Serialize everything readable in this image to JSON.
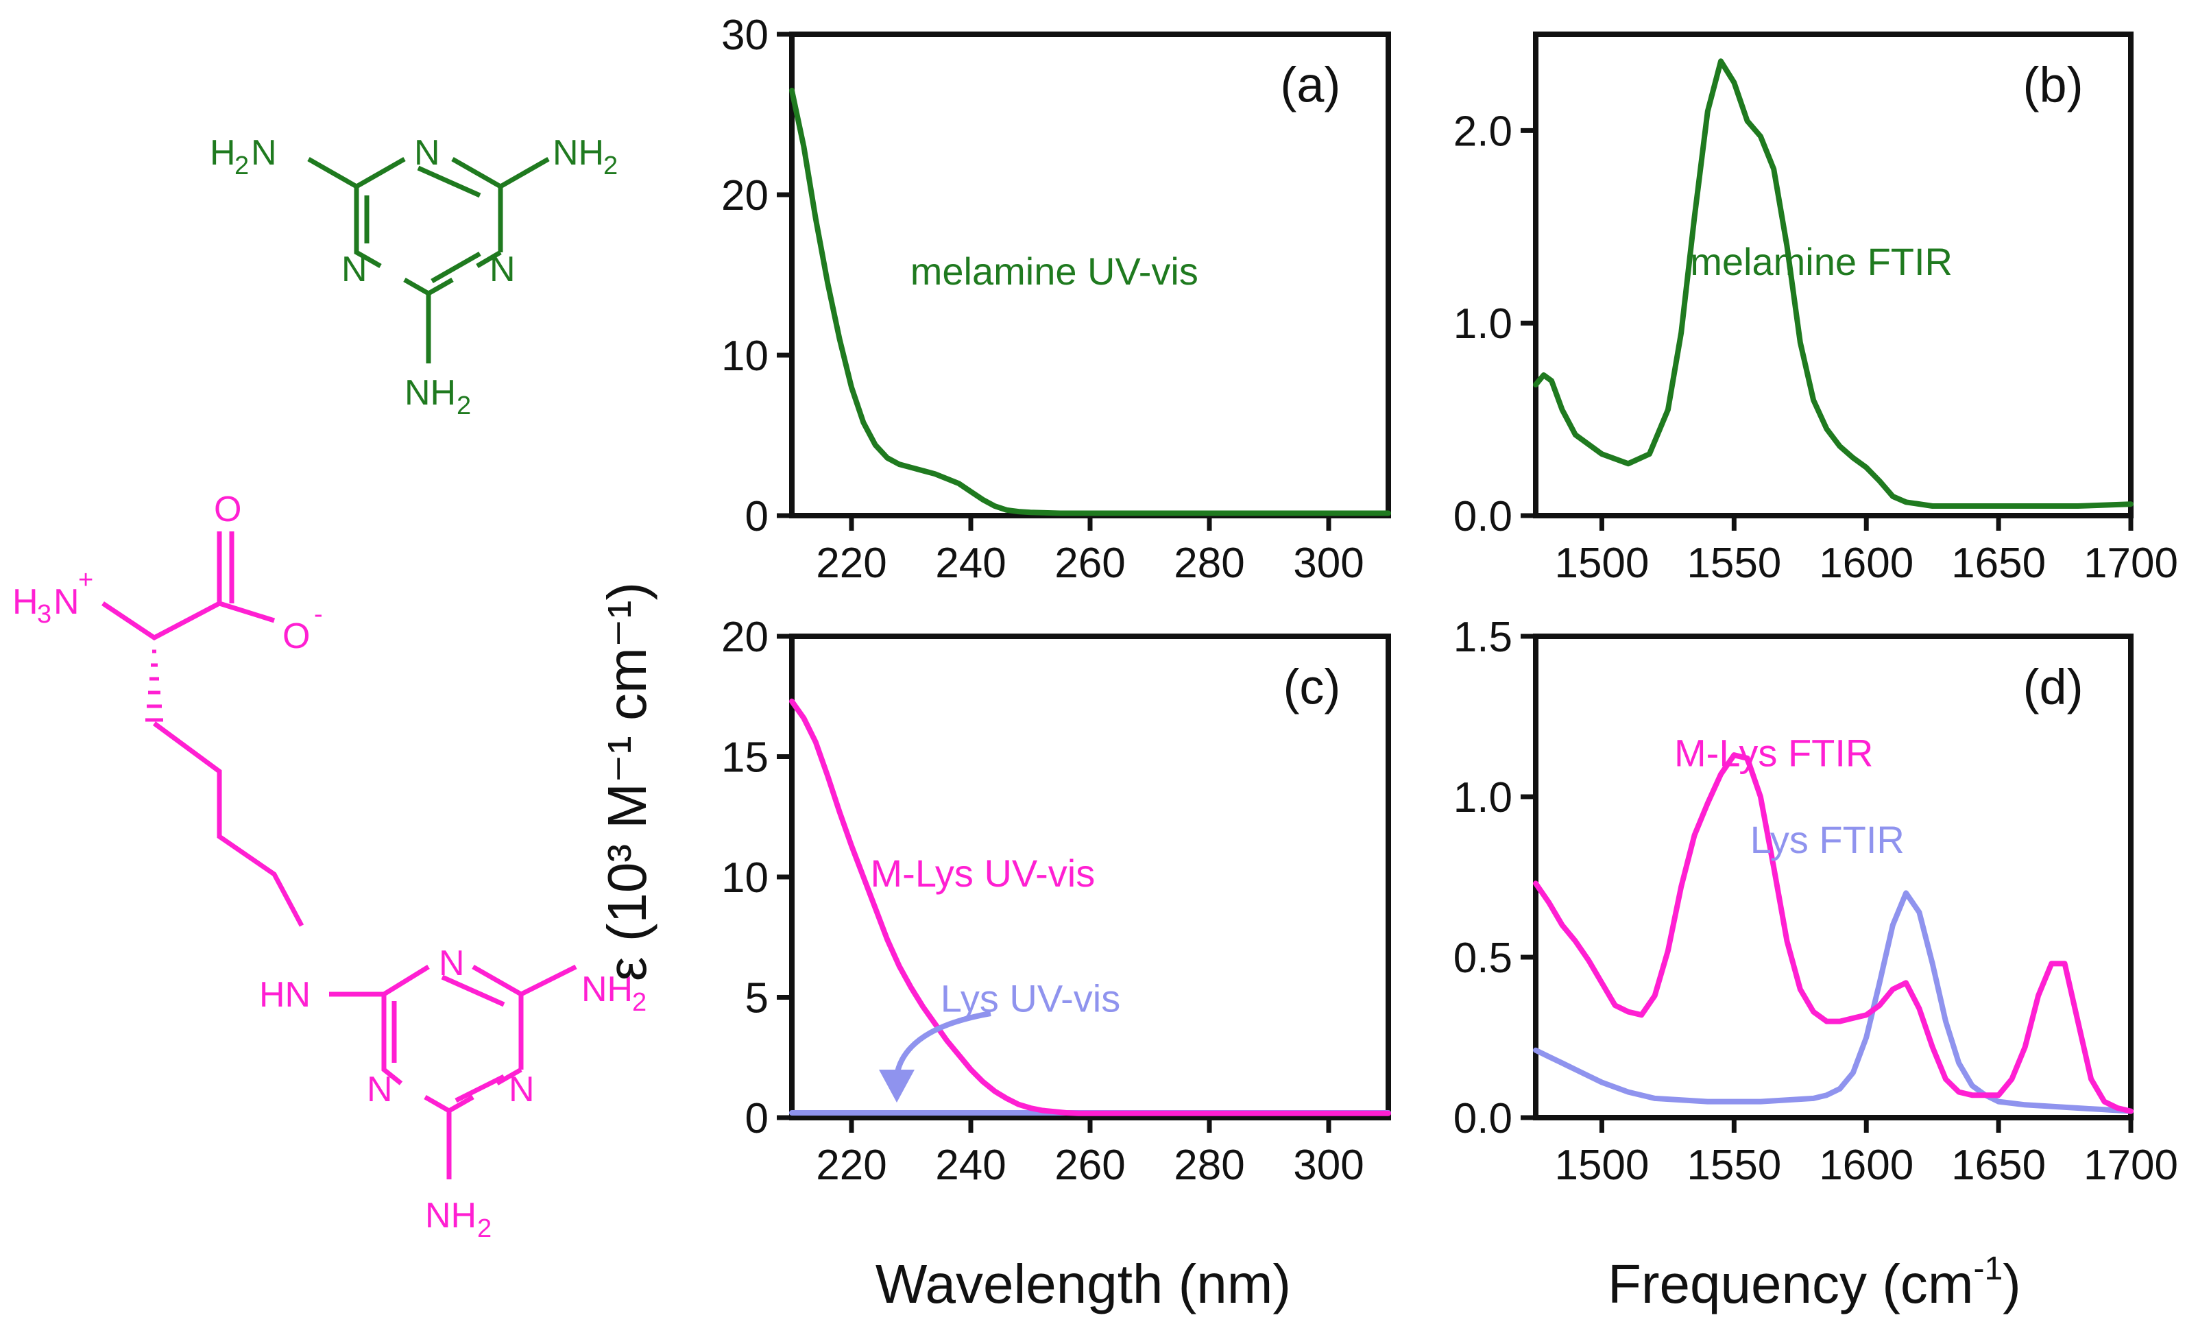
{
  "chart_data": [
    {
      "type": "line",
      "panel_label": "(a)",
      "xlim": [
        210,
        310
      ],
      "ylim": [
        0,
        30
      ],
      "xticks": [
        "220",
        "240",
        "260",
        "280",
        "300"
      ],
      "yticks": [
        "0",
        "10",
        "20",
        "30"
      ],
      "series": [
        {
          "name": "melamine UV-vis",
          "color": "#1f7a1f",
          "label_text": "melamine UV-vis",
          "x": [
            210,
            212,
            214,
            216,
            218,
            220,
            222,
            224,
            226,
            228,
            230,
            232,
            234,
            236,
            238,
            240,
            242,
            244,
            246,
            248,
            250,
            255,
            260,
            270,
            280,
            290,
            300,
            310
          ],
          "y": [
            26.5,
            23.0,
            18.5,
            14.5,
            11.0,
            8.0,
            5.8,
            4.4,
            3.6,
            3.2,
            3.0,
            2.8,
            2.6,
            2.3,
            2.0,
            1.5,
            1.0,
            0.6,
            0.35,
            0.25,
            0.2,
            0.15,
            0.15,
            0.15,
            0.15,
            0.15,
            0.15,
            0.15
          ]
        }
      ]
    },
    {
      "type": "line",
      "panel_label": "(b)",
      "xlim": [
        1475,
        1700
      ],
      "ylim": [
        0,
        2.5
      ],
      "xticks": [
        "1500",
        "1550",
        "1600",
        "1650",
        "1700"
      ],
      "yticks": [
        "0.0",
        "1.0",
        "2.0"
      ],
      "series": [
        {
          "name": "melamine FTIR",
          "color": "#1f7a1f",
          "label_text": "melamine FTIR",
          "x": [
            1475,
            1478,
            1481,
            1485,
            1490,
            1500,
            1510,
            1518,
            1525,
            1530,
            1535,
            1540,
            1545,
            1550,
            1555,
            1560,
            1565,
            1570,
            1575,
            1580,
            1585,
            1590,
            1595,
            1600,
            1605,
            1610,
            1615,
            1625,
            1640,
            1660,
            1680,
            1700
          ],
          "y": [
            0.68,
            0.73,
            0.7,
            0.55,
            0.42,
            0.32,
            0.27,
            0.32,
            0.55,
            0.95,
            1.55,
            2.1,
            2.36,
            2.25,
            2.05,
            1.97,
            1.8,
            1.4,
            0.9,
            0.6,
            0.45,
            0.36,
            0.3,
            0.25,
            0.18,
            0.1,
            0.07,
            0.05,
            0.05,
            0.05,
            0.05,
            0.06
          ]
        }
      ]
    },
    {
      "type": "line",
      "panel_label": "(c)",
      "xlim": [
        210,
        310
      ],
      "ylim": [
        0,
        20
      ],
      "xticks": [
        "220",
        "240",
        "260",
        "280",
        "300"
      ],
      "yticks": [
        "0",
        "5",
        "10",
        "15",
        "20"
      ],
      "series": [
        {
          "name": "M-Lys UV-vis",
          "color": "#ff1fd2",
          "label_text": "M-Lys UV-vis",
          "x": [
            210,
            212,
            214,
            216,
            218,
            220,
            222,
            224,
            226,
            228,
            230,
            232,
            234,
            236,
            238,
            240,
            242,
            244,
            246,
            248,
            250,
            252,
            254,
            256,
            258,
            260,
            270,
            280,
            290,
            300,
            310
          ],
          "y": [
            17.3,
            16.6,
            15.6,
            14.2,
            12.7,
            11.3,
            10.0,
            8.7,
            7.4,
            6.3,
            5.4,
            4.6,
            3.9,
            3.2,
            2.6,
            2.0,
            1.5,
            1.1,
            0.8,
            0.55,
            0.4,
            0.3,
            0.25,
            0.2,
            0.18,
            0.18,
            0.18,
            0.18,
            0.18,
            0.18,
            0.18
          ]
        },
        {
          "name": "Lys UV-vis",
          "color": "#8f93ee",
          "label_text": "Lys UV-vis",
          "x": [
            210,
            310
          ],
          "y": [
            0.2,
            0.2
          ]
        }
      ]
    },
    {
      "type": "line",
      "panel_label": "(d)",
      "xlim": [
        1475,
        1700
      ],
      "ylim": [
        0,
        1.5
      ],
      "xticks": [
        "1500",
        "1550",
        "1600",
        "1650",
        "1700"
      ],
      "yticks": [
        "0.0",
        "0.5",
        "1.0",
        "1.5"
      ],
      "xlabel": "Frequency (cm",
      "series": [
        {
          "name": "M-Lys FTIR",
          "color": "#ff1fd2",
          "label_text": "M-Lys FTIR",
          "x": [
            1475,
            1480,
            1485,
            1490,
            1495,
            1500,
            1505,
            1510,
            1515,
            1520,
            1525,
            1530,
            1535,
            1540,
            1545,
            1550,
            1555,
            1560,
            1565,
            1570,
            1575,
            1580,
            1585,
            1590,
            1595,
            1600,
            1605,
            1610,
            1615,
            1620,
            1625,
            1630,
            1635,
            1640,
            1645,
            1650,
            1655,
            1660,
            1665,
            1670,
            1675,
            1680,
            1685,
            1690,
            1695,
            1700
          ],
          "y": [
            0.73,
            0.67,
            0.6,
            0.55,
            0.49,
            0.42,
            0.35,
            0.33,
            0.32,
            0.38,
            0.52,
            0.72,
            0.88,
            0.98,
            1.07,
            1.13,
            1.12,
            1.0,
            0.78,
            0.55,
            0.4,
            0.33,
            0.3,
            0.3,
            0.31,
            0.32,
            0.35,
            0.4,
            0.42,
            0.34,
            0.22,
            0.12,
            0.08,
            0.07,
            0.07,
            0.07,
            0.12,
            0.22,
            0.38,
            0.48,
            0.48,
            0.3,
            0.12,
            0.05,
            0.03,
            0.02
          ]
        },
        {
          "name": "Lys FTIR",
          "color": "#8f93ee",
          "label_text": "Lys FTIR",
          "x": [
            1475,
            1480,
            1485,
            1490,
            1495,
            1500,
            1510,
            1520,
            1530,
            1540,
            1550,
            1560,
            1570,
            1580,
            1585,
            1590,
            1595,
            1600,
            1605,
            1610,
            1615,
            1620,
            1625,
            1630,
            1635,
            1640,
            1645,
            1650,
            1660,
            1670,
            1680,
            1690,
            1700
          ],
          "y": [
            0.21,
            0.19,
            0.17,
            0.15,
            0.13,
            0.11,
            0.08,
            0.06,
            0.055,
            0.05,
            0.05,
            0.05,
            0.055,
            0.06,
            0.07,
            0.09,
            0.14,
            0.25,
            0.42,
            0.6,
            0.7,
            0.64,
            0.48,
            0.3,
            0.17,
            0.1,
            0.07,
            0.05,
            0.04,
            0.035,
            0.03,
            0.025,
            0.02
          ]
        }
      ]
    }
  ],
  "shared_labels": {
    "y_title": "ε (10³ M⁻¹ cm⁻¹)",
    "x_title_left": "Wavelength (nm)",
    "x_title_right_main": "Frequency (cm",
    "x_title_right_sup": "-1",
    "x_title_right_end": ")"
  },
  "structures": {
    "melamine": {
      "color": "#1f7a1f",
      "atoms": {
        "n_top": "N",
        "n_left": "N",
        "n_right": "N",
        "nh2_left_h": "H",
        "nh2_left_sub": "2",
        "nh2_left_n": "N",
        "nh2_right_n": "NH",
        "nh2_right_sub": "2",
        "nh2_bottom_n": "NH",
        "nh2_bottom_sub": "2"
      }
    },
    "m_lys": {
      "color": "#ff1fd2",
      "atoms": {
        "h3n_h": "H",
        "h3n_sub": "3",
        "h3n_n": "N",
        "h3n_plus": "+",
        "o_double": "O",
        "o_minus": "O",
        "o_minus_sign": "-",
        "hn": "HN",
        "n_top": "N",
        "n_left": "N",
        "n_right": "N",
        "nh2_right_n": "NH",
        "nh2_right_sub": "2",
        "nh2_bottom_n": "NH",
        "nh2_bottom_sub": "2"
      }
    }
  }
}
